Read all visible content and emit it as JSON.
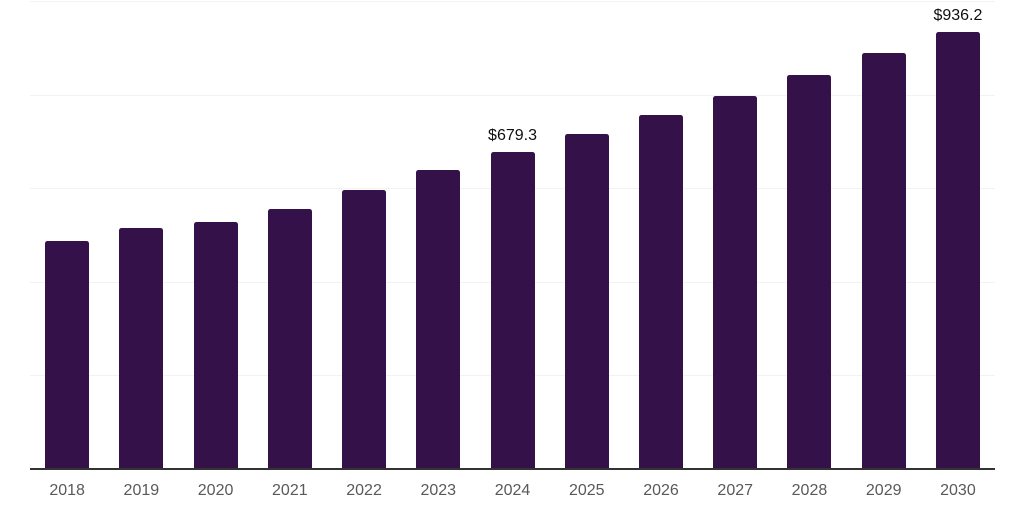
{
  "chart_data": {
    "type": "bar",
    "title": "",
    "xlabel": "",
    "ylabel": "",
    "categories": [
      "2018",
      "2019",
      "2020",
      "2021",
      "2022",
      "2023",
      "2024",
      "2025",
      "2026",
      "2027",
      "2028",
      "2029",
      "2030"
    ],
    "values": [
      490,
      518,
      529,
      558,
      598,
      641,
      679.3,
      718,
      758,
      800,
      844,
      890,
      936.2
    ],
    "data_labels": {
      "2024": "$679.3",
      "2030": "$936.2"
    },
    "ylim": [
      0,
      1000
    ],
    "grid_step": 200,
    "grid": "horizontal-faint",
    "legend": "none",
    "colors": {
      "bar": "#341249",
      "axis_line": "#333333",
      "gridline": "#f2f2f2",
      "tick_label": "#595959",
      "data_label": "#0f0f0f",
      "background": "#ffffff"
    }
  }
}
